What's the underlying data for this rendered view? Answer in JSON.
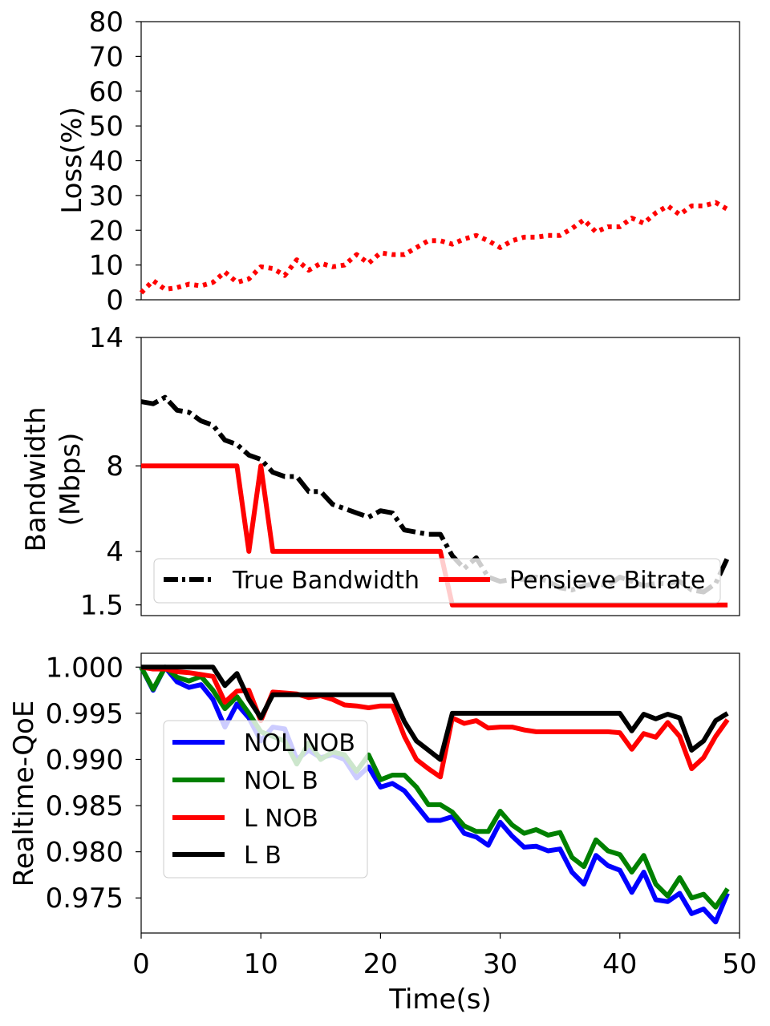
{
  "chart_data": [
    {
      "type": "line",
      "title": "",
      "xlabel": "",
      "ylabel": "Loss(%)",
      "xlim": [
        0,
        50
      ],
      "ylim": [
        0,
        80
      ],
      "yticks": [
        "0",
        "10",
        "20",
        "30",
        "40",
        "50",
        "60",
        "70",
        "80"
      ],
      "grid": false,
      "series": [
        {
          "color": "#ff0000",
          "style": "dotted",
          "x": [
            0,
            1,
            2,
            3,
            4,
            5,
            6,
            7,
            8,
            9,
            10,
            11,
            12,
            13,
            14,
            15,
            16,
            17,
            18,
            19,
            20,
            21,
            22,
            23,
            24,
            25,
            26,
            27,
            28,
            29,
            30,
            31,
            32,
            33,
            34,
            35,
            36,
            37,
            38,
            39,
            40,
            41,
            42,
            43,
            44,
            45,
            46,
            47,
            48,
            49
          ],
          "values": [
            2,
            5.5,
            3,
            3.5,
            4.5,
            4,
            5,
            8,
            5,
            6,
            9.5,
            9,
            7,
            11.5,
            8.5,
            10.5,
            9.5,
            10,
            13,
            10.5,
            13.5,
            13,
            13,
            15,
            17,
            17,
            16,
            17.5,
            18.5,
            17,
            15,
            17,
            18,
            18,
            18.5,
            18.5,
            20.5,
            23,
            19.5,
            21,
            21,
            23.5,
            22,
            25,
            27,
            24.5,
            27,
            27,
            28,
            26
          ]
        }
      ]
    },
    {
      "type": "line",
      "title": "",
      "xlabel": "",
      "ylabel": "Bandwidth\n(Mbps)",
      "ylabel_lines": [
        "Bandwidth",
        "(Mbps)"
      ],
      "xlim": [
        0,
        50
      ],
      "ylim": [
        1,
        14
      ],
      "yticks": [
        {
          "value": 14,
          "label": "14",
          "color": "#000000"
        },
        {
          "value": 8,
          "label": "8",
          "color": "#ff0000"
        },
        {
          "value": 4,
          "label": "4",
          "color": "#ff0000"
        },
        {
          "value": 1.5,
          "label": "1.5",
          "color": "#ff0000"
        }
      ],
      "grid": false,
      "legend": "bottom-right",
      "legend_entries": [
        "True Bandwidth",
        "Pensieve Bitrate"
      ],
      "series": [
        {
          "name": "True Bandwidth",
          "color": "#000000",
          "style": "dashdot",
          "x": [
            0,
            1,
            2,
            3,
            4,
            5,
            6,
            7,
            8,
            9,
            10,
            11,
            12,
            13,
            14,
            15,
            16,
            17,
            18,
            19,
            20,
            21,
            22,
            23,
            24,
            25,
            26,
            27,
            28,
            29,
            30,
            31,
            32,
            33,
            34,
            35,
            36,
            37,
            38,
            39,
            40,
            41,
            42,
            43,
            44,
            45,
            46,
            47,
            48,
            49
          ],
          "values": [
            11,
            10.9,
            11.2,
            10.6,
            10.5,
            10.1,
            9.9,
            9.2,
            9,
            8.5,
            8.3,
            7.7,
            7.5,
            7.5,
            6.8,
            6.8,
            6.2,
            6,
            5.8,
            5.6,
            5.9,
            5.8,
            5,
            4.9,
            4.8,
            4.8,
            3.8,
            3.2,
            3.7,
            2.8,
            2.6,
            2.7,
            2.7,
            2.8,
            2.6,
            2.3,
            2.2,
            2.4,
            2.5,
            2.4,
            2.8,
            2.6,
            2.4,
            2.5,
            2.5,
            2.6,
            2.2,
            2.1,
            2.5,
            3.7
          ]
        },
        {
          "name": "Pensieve Bitrate",
          "color": "#ff0000",
          "style": "solid",
          "x": [
            0,
            8,
            9,
            10,
            11,
            25,
            26,
            49
          ],
          "values": [
            8,
            8,
            4,
            8,
            4,
            4,
            1.5,
            1.5
          ]
        }
      ]
    },
    {
      "type": "line",
      "title": "",
      "xlabel": "Time(s)",
      "ylabel": "Realtime-QoE",
      "xlim": [
        0,
        50
      ],
      "xticks": [
        "0",
        "10",
        "20",
        "30",
        "40",
        "50"
      ],
      "ylim": [
        0.9712,
        1.0015
      ],
      "yticks": [
        "0.975",
        "0.980",
        "0.985",
        "0.990",
        "0.995",
        "1.000"
      ],
      "grid": false,
      "legend": "center-left",
      "legend_entries": [
        "NOL NOB",
        "NOL B",
        "L NOB",
        "L B"
      ],
      "series": [
        {
          "name": "NOL NOB",
          "color": "#0000ff",
          "x": [
            0,
            1,
            2,
            3,
            4,
            5,
            6,
            7,
            8,
            9,
            10,
            11,
            12,
            13,
            14,
            15,
            16,
            17,
            18,
            19,
            20,
            21,
            22,
            23,
            24,
            25,
            26,
            27,
            28,
            29,
            30,
            31,
            32,
            33,
            34,
            35,
            36,
            37,
            38,
            39,
            40,
            41,
            42,
            43,
            44,
            45,
            46,
            47,
            48,
            49
          ],
          "values": [
            1.0,
            0.9975,
            1.0,
            0.9984,
            0.9978,
            0.9981,
            0.9965,
            0.9935,
            0.996,
            0.9945,
            0.992,
            0.9935,
            0.9933,
            0.99,
            0.991,
            0.9902,
            0.9905,
            0.99,
            0.988,
            0.9892,
            0.987,
            0.9874,
            0.9866,
            0.985,
            0.9834,
            0.9834,
            0.9838,
            0.982,
            0.9816,
            0.9807,
            0.9832,
            0.9817,
            0.9805,
            0.9806,
            0.9801,
            0.9803,
            0.9778,
            0.9765,
            0.9796,
            0.9785,
            0.978,
            0.9756,
            0.9778,
            0.9748,
            0.9746,
            0.9755,
            0.9733,
            0.9738,
            0.9724,
            0.9755
          ]
        },
        {
          "name": "NOL B",
          "color": "#008000",
          "x": [
            0,
            1,
            2,
            3,
            4,
            5,
            6,
            7,
            8,
            9,
            10,
            11,
            12,
            13,
            14,
            15,
            16,
            17,
            18,
            19,
            20,
            21,
            22,
            23,
            24,
            25,
            26,
            27,
            28,
            29,
            30,
            31,
            32,
            33,
            34,
            35,
            36,
            37,
            38,
            39,
            40,
            41,
            42,
            43,
            44,
            45,
            46,
            47,
            48,
            49
          ],
          "values": [
            1.0,
            0.9976,
            1.0,
            0.9989,
            0.9985,
            0.999,
            0.9975,
            0.9955,
            0.9968,
            0.995,
            0.993,
            0.9925,
            0.992,
            0.9895,
            0.9918,
            0.99,
            0.9908,
            0.9905,
            0.9887,
            0.9905,
            0.9878,
            0.9883,
            0.9883,
            0.987,
            0.9851,
            0.9851,
            0.9843,
            0.9828,
            0.9822,
            0.9822,
            0.9844,
            0.9829,
            0.982,
            0.9824,
            0.9818,
            0.9821,
            0.9794,
            0.9784,
            0.9813,
            0.9801,
            0.9797,
            0.9778,
            0.9796,
            0.9765,
            0.9752,
            0.9772,
            0.975,
            0.9754,
            0.974,
            0.976
          ]
        },
        {
          "name": "L NOB",
          "color": "#ff0000",
          "x": [
            0,
            1,
            2,
            3,
            4,
            5,
            6,
            7,
            8,
            9,
            10,
            11,
            12,
            13,
            14,
            15,
            16,
            17,
            18,
            19,
            20,
            21,
            22,
            23,
            24,
            25,
            26,
            27,
            28,
            29,
            30,
            31,
            32,
            33,
            34,
            35,
            36,
            37,
            38,
            39,
            40,
            41,
            42,
            43,
            44,
            45,
            46,
            47,
            48,
            49
          ],
          "values": [
            1.0,
            0.9998,
            0.9998,
            0.9995,
            0.9994,
            0.9992,
            0.999,
            0.9962,
            0.9974,
            0.9975,
            0.9942,
            0.9973,
            0.9972,
            0.9971,
            0.9967,
            0.9969,
            0.9965,
            0.9959,
            0.9958,
            0.9956,
            0.9958,
            0.9958,
            0.9925,
            0.99,
            0.989,
            0.9881,
            0.9945,
            0.9939,
            0.9942,
            0.9934,
            0.9935,
            0.9935,
            0.9932,
            0.993,
            0.993,
            0.993,
            0.993,
            0.993,
            0.993,
            0.993,
            0.9929,
            0.9911,
            0.9928,
            0.9924,
            0.994,
            0.9925,
            0.989,
            0.9902,
            0.9925,
            0.9943
          ]
        },
        {
          "name": "L B",
          "color": "#000000",
          "x": [
            0,
            1,
            2,
            3,
            4,
            5,
            6,
            7,
            8,
            9,
            10,
            11,
            12,
            13,
            14,
            15,
            16,
            17,
            18,
            19,
            20,
            21,
            22,
            23,
            24,
            25,
            26,
            27,
            28,
            29,
            30,
            31,
            32,
            33,
            34,
            35,
            36,
            37,
            38,
            39,
            40,
            41,
            42,
            43,
            44,
            45,
            46,
            47,
            48,
            49
          ],
          "values": [
            1.0,
            1.0,
            1.0,
            1.0,
            1.0,
            1.0,
            1.0,
            0.998,
            0.9993,
            0.9965,
            0.9945,
            0.997,
            0.997,
            0.997,
            0.997,
            0.997,
            0.997,
            0.997,
            0.997,
            0.997,
            0.997,
            0.997,
            0.9941,
            0.992,
            0.991,
            0.99,
            0.995,
            0.995,
            0.995,
            0.995,
            0.995,
            0.995,
            0.995,
            0.995,
            0.995,
            0.995,
            0.995,
            0.995,
            0.995,
            0.995,
            0.995,
            0.9931,
            0.9949,
            0.9944,
            0.9949,
            0.9945,
            0.991,
            0.992,
            0.9942,
            0.995
          ]
        }
      ]
    }
  ]
}
